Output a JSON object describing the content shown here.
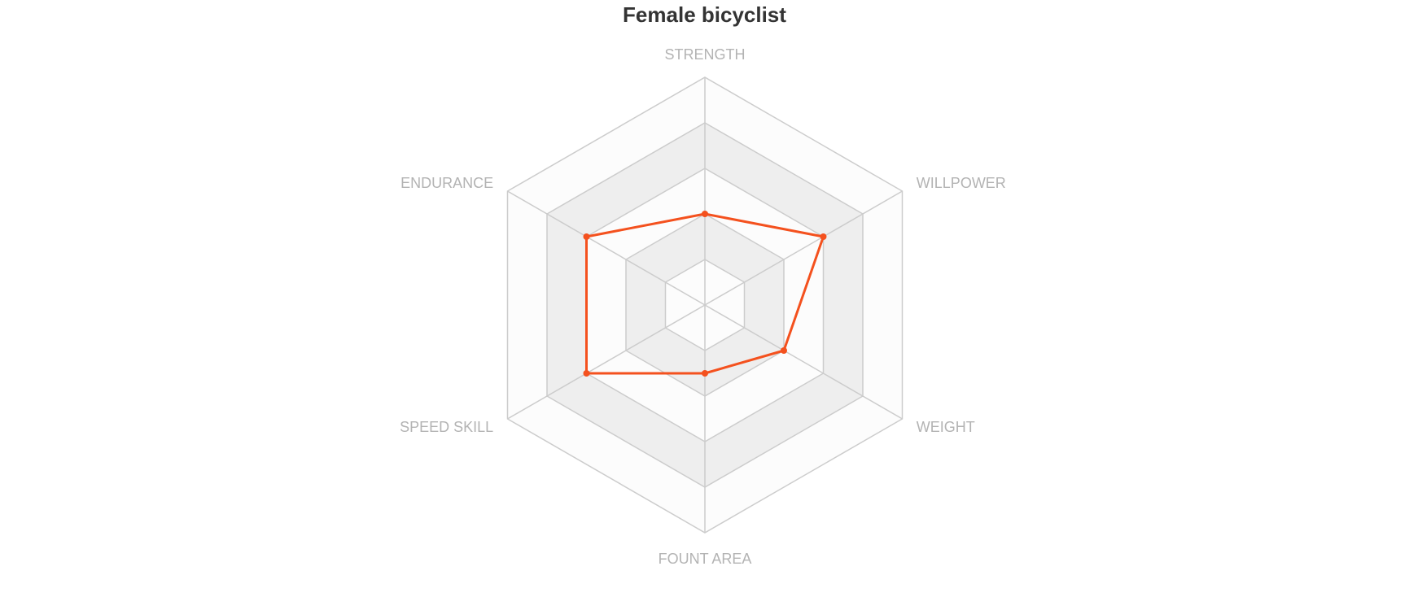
{
  "chart_data": {
    "type": "radar",
    "title": "Female bicyclist",
    "indicators": [
      "STRENGTH",
      "WILLPOWER",
      "WEIGHT",
      "FOUNT AREA",
      "SPEED SKILL",
      "ENDURANCE"
    ],
    "max": 5,
    "split_number": 5,
    "split_area": true,
    "series": [
      {
        "values": [
          2,
          3,
          2,
          1.5,
          3,
          3
        ]
      }
    ],
    "colors": {
      "series": "#f4511e",
      "grid_line": "#cccccc",
      "band_light": "#fcfcfc",
      "band_dark": "#eeeeee",
      "axis_label": "#b3b3b3",
      "title": "#333333"
    }
  }
}
